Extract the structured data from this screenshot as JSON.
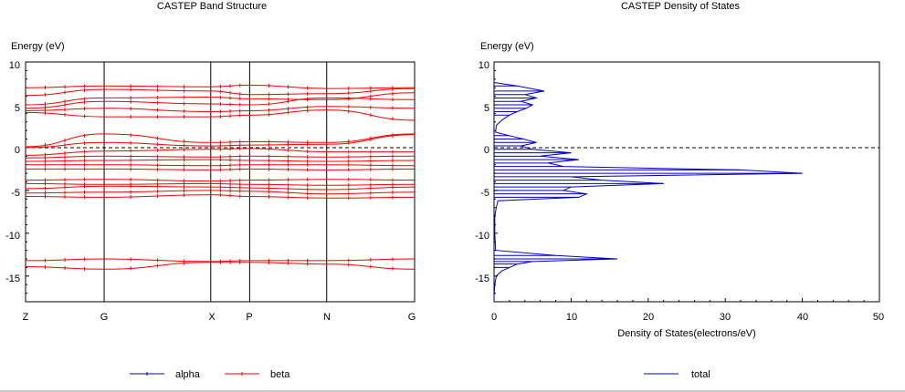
{
  "band_panel": {
    "title": "CASTEP Band Structure",
    "ylabel": "Energy (eV)",
    "y_ticks": [
      "10",
      "5",
      "0",
      "-5",
      "-10",
      "-15"
    ],
    "k_labels": [
      "Z",
      "G",
      "X",
      "P",
      "N",
      "G"
    ],
    "legend": [
      {
        "label": "alpha",
        "color": "#0000cc"
      },
      {
        "label": "beta",
        "color": "#ff0000"
      }
    ]
  },
  "dos_panel": {
    "title": "CASTEP Density of States",
    "ylabel": "Energy (eV)",
    "xlabel": "Density of States(electrons/eV)",
    "y_ticks": [
      "10",
      "5",
      "0",
      "-5",
      "-10",
      "-15"
    ],
    "x_ticks": [
      "0",
      "10",
      "20",
      "30",
      "40",
      "50"
    ],
    "legend": [
      {
        "label": "total",
        "color": "#0000cc"
      }
    ]
  },
  "chart_data": [
    {
      "type": "line",
      "title": "CASTEP Band Structure",
      "ylabel": "Energy (eV)",
      "xlabel": "",
      "ylim": [
        -18,
        10
      ],
      "fermi_level": 0,
      "k_path": [
        "Z",
        "G",
        "X",
        "P",
        "N",
        "G"
      ],
      "k_positions": [
        0,
        0.202,
        0.476,
        0.576,
        0.774,
        1
      ],
      "series": [
        {
          "name": "beta",
          "color": "#ff0000",
          "bands": [
            [
              7.0,
              7.2,
              7.1,
              7.3,
              6.9,
              7.0
            ],
            [
              6.1,
              6.8,
              6.6,
              6.2,
              6.3,
              6.9
            ],
            [
              5.0,
              5.8,
              5.9,
              5.7,
              5.6,
              6.4
            ],
            [
              4.6,
              5.4,
              5.1,
              5.0,
              5.8,
              5.6
            ],
            [
              4.3,
              4.6,
              4.2,
              4.3,
              4.8,
              4.6
            ],
            [
              4.1,
              3.6,
              3.6,
              3.8,
              4.4,
              3.2
            ],
            [
              0.1,
              1.6,
              0.6,
              0.7,
              0.6,
              1.6
            ],
            [
              0.0,
              0.6,
              0.2,
              0.3,
              0.4,
              1.5
            ],
            [
              -0.9,
              -0.4,
              -0.2,
              -0.1,
              -0.5,
              -0.5
            ],
            [
              -1.2,
              -1.0,
              -1.1,
              -1.0,
              -1.1,
              -1.0
            ],
            [
              -1.6,
              -1.5,
              -1.4,
              -1.5,
              -1.6,
              -1.5
            ],
            [
              -2.0,
              -2.0,
              -2.1,
              -2.0,
              -2.0,
              -2.1
            ],
            [
              -2.5,
              -2.5,
              -2.6,
              -2.5,
              -2.6,
              -2.5
            ],
            [
              -3.8,
              -3.7,
              -3.9,
              -3.8,
              -3.7,
              -3.8
            ],
            [
              -4.2,
              -4.3,
              -4.2,
              -4.3,
              -4.4,
              -4.3
            ],
            [
              -4.8,
              -4.5,
              -4.6,
              -4.7,
              -4.9,
              -4.6
            ],
            [
              -5.3,
              -5.2,
              -5.0,
              -5.1,
              -5.4,
              -5.2
            ],
            [
              -5.7,
              -5.8,
              -5.5,
              -5.7,
              -5.9,
              -5.8
            ],
            [
              -13.2,
              -13.0,
              -13.3,
              -13.2,
              -13.2,
              -13.0
            ],
            [
              -13.9,
              -14.2,
              -13.4,
              -13.4,
              -13.6,
              -14.2
            ]
          ]
        }
      ]
    },
    {
      "type": "line",
      "title": "CASTEP Density of States",
      "xlabel": "Density of States(electrons/eV)",
      "ylabel": "Energy (eV)",
      "xlim": [
        0,
        50
      ],
      "ylim": [
        -18,
        10
      ],
      "fermi_level": 0,
      "series": [
        {
          "name": "total",
          "color": "#0000cc",
          "energy": [
            7.6,
            7.2,
            6.6,
            6.2,
            5.8,
            5.4,
            5.0,
            4.6,
            4.2,
            3.8,
            3.2,
            2.6,
            1.8,
            1.4,
            1.0,
            0.6,
            0.2,
            -0.2,
            -0.6,
            -1.0,
            -1.4,
            -1.8,
            -2.2,
            -2.6,
            -3.0,
            -3.4,
            -3.8,
            -4.2,
            -4.6,
            -5.0,
            -5.4,
            -5.8,
            -6.2,
            -7.0,
            -8.0,
            -10.0,
            -12.0,
            -12.6,
            -13.0,
            -13.3,
            -13.6,
            -14.0,
            -14.4,
            -15.0,
            -16.0,
            -17.5
          ],
          "dos": [
            0.0,
            3.0,
            6.5,
            4.0,
            5.5,
            3.5,
            5.0,
            4.2,
            3.0,
            2.0,
            1.0,
            0.3,
            0.2,
            2.0,
            3.8,
            5.5,
            3.5,
            5.0,
            10.0,
            6.0,
            11.0,
            7.0,
            9.0,
            32.0,
            40.0,
            10.0,
            14.0,
            22.0,
            10.0,
            9.0,
            12.0,
            11.0,
            0.5,
            0.3,
            0.1,
            0.1,
            0.2,
            8.0,
            16.0,
            5.0,
            3.0,
            2.0,
            1.0,
            0.3,
            0.1,
            0.0
          ]
        }
      ]
    }
  ]
}
